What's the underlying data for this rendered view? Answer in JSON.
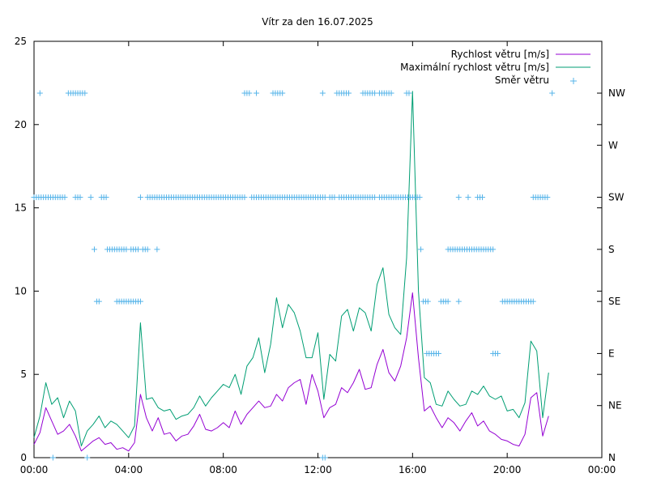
{
  "chart_data": {
    "type": "line",
    "title": "Vítr za den 16.07.2025",
    "xlabel": "",
    "ylabel": "",
    "x_range_hours": [
      0,
      24
    ],
    "x_tick_labels": [
      "00:00",
      "04:00",
      "08:00",
      "12:00",
      "16:00",
      "20:00",
      "00:00"
    ],
    "ylim": [
      0,
      25
    ],
    "y_tick_labels": [
      "0",
      "5",
      "10",
      "15",
      "20",
      "25"
    ],
    "y2_tick_labels": [
      "N",
      "NE",
      "E",
      "SE",
      "S",
      "SW",
      "W",
      "NW"
    ],
    "grid": false,
    "legend_position": "top-right",
    "series": [
      {
        "name": "Rychlost větru [m/s]",
        "style": "line",
        "color": "#9400d3",
        "x": [
          0.0,
          0.25,
          0.5,
          0.75,
          1.0,
          1.25,
          1.5,
          1.75,
          2.0,
          2.25,
          2.5,
          2.75,
          3.0,
          3.25,
          3.5,
          3.75,
          4.0,
          4.25,
          4.5,
          4.75,
          5.0,
          5.25,
          5.5,
          5.75,
          6.0,
          6.25,
          6.5,
          6.75,
          7.0,
          7.25,
          7.5,
          7.75,
          8.0,
          8.25,
          8.5,
          8.75,
          9.0,
          9.25,
          9.5,
          9.75,
          10.0,
          10.25,
          10.5,
          10.75,
          11.0,
          11.25,
          11.5,
          11.75,
          12.0,
          12.25,
          12.5,
          12.75,
          13.0,
          13.25,
          13.5,
          13.75,
          14.0,
          14.25,
          14.5,
          14.75,
          15.0,
          15.25,
          15.5,
          15.75,
          16.0,
          16.25,
          16.5,
          16.75,
          17.0,
          17.25,
          17.5,
          17.75,
          18.0,
          18.25,
          18.5,
          18.75,
          19.0,
          19.25,
          19.5,
          19.75,
          20.0,
          20.25,
          20.5,
          20.75,
          21.0,
          21.25,
          21.5,
          21.75
        ],
        "values": [
          0.8,
          1.5,
          3.0,
          2.2,
          1.4,
          1.6,
          2.0,
          1.3,
          0.4,
          0.7,
          1.0,
          1.2,
          0.8,
          0.9,
          0.5,
          0.6,
          0.4,
          0.9,
          3.8,
          2.4,
          1.6,
          2.4,
          1.4,
          1.5,
          1.0,
          1.3,
          1.4,
          1.9,
          2.6,
          1.7,
          1.6,
          1.8,
          2.1,
          1.8,
          2.8,
          2.0,
          2.6,
          3.0,
          3.4,
          3.0,
          3.1,
          3.8,
          3.4,
          4.2,
          4.5,
          4.7,
          3.2,
          5.0,
          4.0,
          2.4,
          3.0,
          3.2,
          4.2,
          3.9,
          4.5,
          5.3,
          4.1,
          4.2,
          5.6,
          6.5,
          5.1,
          4.6,
          5.5,
          7.2,
          9.9,
          6.0,
          2.8,
          3.1,
          2.4,
          1.8,
          2.4,
          2.1,
          1.6,
          2.2,
          2.7,
          1.9,
          2.2,
          1.6,
          1.4,
          1.1,
          1.0,
          0.8,
          0.7,
          1.4,
          3.6,
          3.9,
          1.3,
          2.5
        ]
      },
      {
        "name": "Maximální rychlost větru [m/s]",
        "style": "line",
        "color": "#009e73",
        "x": [
          0.0,
          0.25,
          0.5,
          0.75,
          1.0,
          1.25,
          1.5,
          1.75,
          2.0,
          2.25,
          2.5,
          2.75,
          3.0,
          3.25,
          3.5,
          3.75,
          4.0,
          4.25,
          4.5,
          4.75,
          5.0,
          5.25,
          5.5,
          5.75,
          6.0,
          6.25,
          6.5,
          6.75,
          7.0,
          7.25,
          7.5,
          7.75,
          8.0,
          8.25,
          8.5,
          8.75,
          9.0,
          9.25,
          9.5,
          9.75,
          10.0,
          10.25,
          10.5,
          10.75,
          11.0,
          11.25,
          11.5,
          11.75,
          12.0,
          12.25,
          12.5,
          12.75,
          13.0,
          13.25,
          13.5,
          13.75,
          14.0,
          14.25,
          14.5,
          14.75,
          15.0,
          15.25,
          15.5,
          15.75,
          16.0,
          16.25,
          16.5,
          16.75,
          17.0,
          17.25,
          17.5,
          17.75,
          18.0,
          18.25,
          18.5,
          18.75,
          19.0,
          19.25,
          19.5,
          19.75,
          20.0,
          20.25,
          20.5,
          20.75,
          21.0,
          21.25,
          21.5,
          21.75
        ],
        "values": [
          1.2,
          2.5,
          4.5,
          3.2,
          3.6,
          2.4,
          3.4,
          2.8,
          0.7,
          1.6,
          2.0,
          2.5,
          1.8,
          2.2,
          2.0,
          1.6,
          1.2,
          1.9,
          8.1,
          3.5,
          3.6,
          3.0,
          2.8,
          2.9,
          2.3,
          2.5,
          2.6,
          3.0,
          3.7,
          3.1,
          3.6,
          4.0,
          4.4,
          4.2,
          5.0,
          3.8,
          5.5,
          6.0,
          7.2,
          5.1,
          6.8,
          9.6,
          7.8,
          9.2,
          8.7,
          7.6,
          6.0,
          6.0,
          7.5,
          3.5,
          6.2,
          5.8,
          8.5,
          8.9,
          7.6,
          9.0,
          8.7,
          7.6,
          10.4,
          11.4,
          8.6,
          7.8,
          7.4,
          12.0,
          22.0,
          10.0,
          4.8,
          4.5,
          3.2,
          3.1,
          4.0,
          3.5,
          3.1,
          3.2,
          4.0,
          3.8,
          4.3,
          3.7,
          3.5,
          3.7,
          2.8,
          2.9,
          2.4,
          3.3,
          7.0,
          6.4,
          2.4,
          5.1
        ]
      },
      {
        "name": "Směr větru",
        "style": "points",
        "color": "#56b4e9",
        "direction_segments": [
          {
            "dir": "SW",
            "start": 0.0,
            "end": 0.8
          },
          {
            "dir": "NW",
            "start": 0.25,
            "end": 0.25
          },
          {
            "dir": "N",
            "start": 0.8,
            "end": 0.8
          },
          {
            "dir": "SW",
            "start": 0.9,
            "end": 1.35
          },
          {
            "dir": "NW",
            "start": 1.45,
            "end": 2.2
          },
          {
            "dir": "SW",
            "start": 1.75,
            "end": 2.0
          },
          {
            "dir": "N",
            "start": 2.25,
            "end": 2.25
          },
          {
            "dir": "SW",
            "start": 2.4,
            "end": 2.4
          },
          {
            "dir": "S",
            "start": 2.55,
            "end": 2.55
          },
          {
            "dir": "SE",
            "start": 2.65,
            "end": 2.8
          },
          {
            "dir": "SW",
            "start": 2.85,
            "end": 3.05
          },
          {
            "dir": "S",
            "start": 3.1,
            "end": 3.9
          },
          {
            "dir": "SE",
            "start": 3.5,
            "end": 4.5
          },
          {
            "dir": "S",
            "start": 4.1,
            "end": 4.4
          },
          {
            "dir": "SW",
            "start": 4.5,
            "end": 4.5
          },
          {
            "dir": "S",
            "start": 4.6,
            "end": 4.8
          },
          {
            "dir": "S",
            "start": 5.2,
            "end": 5.2
          },
          {
            "dir": "SW",
            "start": 4.8,
            "end": 8.9
          },
          {
            "dir": "NW",
            "start": 8.9,
            "end": 9.1
          },
          {
            "dir": "NW",
            "start": 9.4,
            "end": 9.4
          },
          {
            "dir": "SW",
            "start": 9.2,
            "end": 12.3
          },
          {
            "dir": "NW",
            "start": 10.1,
            "end": 10.5
          },
          {
            "dir": "N",
            "start": 12.2,
            "end": 12.3
          },
          {
            "dir": "NW",
            "start": 12.2,
            "end": 12.2
          },
          {
            "dir": "SW",
            "start": 12.5,
            "end": 12.7
          },
          {
            "dir": "NW",
            "start": 12.8,
            "end": 13.3
          },
          {
            "dir": "SW",
            "start": 12.9,
            "end": 14.4
          },
          {
            "dir": "NW",
            "start": 13.9,
            "end": 14.4
          },
          {
            "dir": "SW",
            "start": 14.6,
            "end": 15.5
          },
          {
            "dir": "NW",
            "start": 14.6,
            "end": 15.1
          },
          {
            "dir": "NW",
            "start": 15.75,
            "end": 15.9
          },
          {
            "dir": "SW",
            "start": 15.6,
            "end": 16.3
          },
          {
            "dir": "S",
            "start": 16.35,
            "end": 16.35
          },
          {
            "dir": "SE",
            "start": 16.45,
            "end": 16.7
          },
          {
            "dir": "E",
            "start": 16.6,
            "end": 17.1
          },
          {
            "dir": "SE",
            "start": 17.2,
            "end": 17.5
          },
          {
            "dir": "S",
            "start": 17.5,
            "end": 19.4
          },
          {
            "dir": "SE",
            "start": 17.95,
            "end": 17.95
          },
          {
            "dir": "SW",
            "start": 17.95,
            "end": 17.95
          },
          {
            "dir": "SW",
            "start": 18.35,
            "end": 18.35
          },
          {
            "dir": "SW",
            "start": 18.75,
            "end": 18.95
          },
          {
            "dir": "E",
            "start": 19.4,
            "end": 19.6
          },
          {
            "dir": "SE",
            "start": 19.8,
            "end": 21.1
          },
          {
            "dir": "SW",
            "start": 21.1,
            "end": 21.7
          },
          {
            "dir": "NW",
            "start": 21.9,
            "end": 21.9
          }
        ]
      }
    ]
  }
}
